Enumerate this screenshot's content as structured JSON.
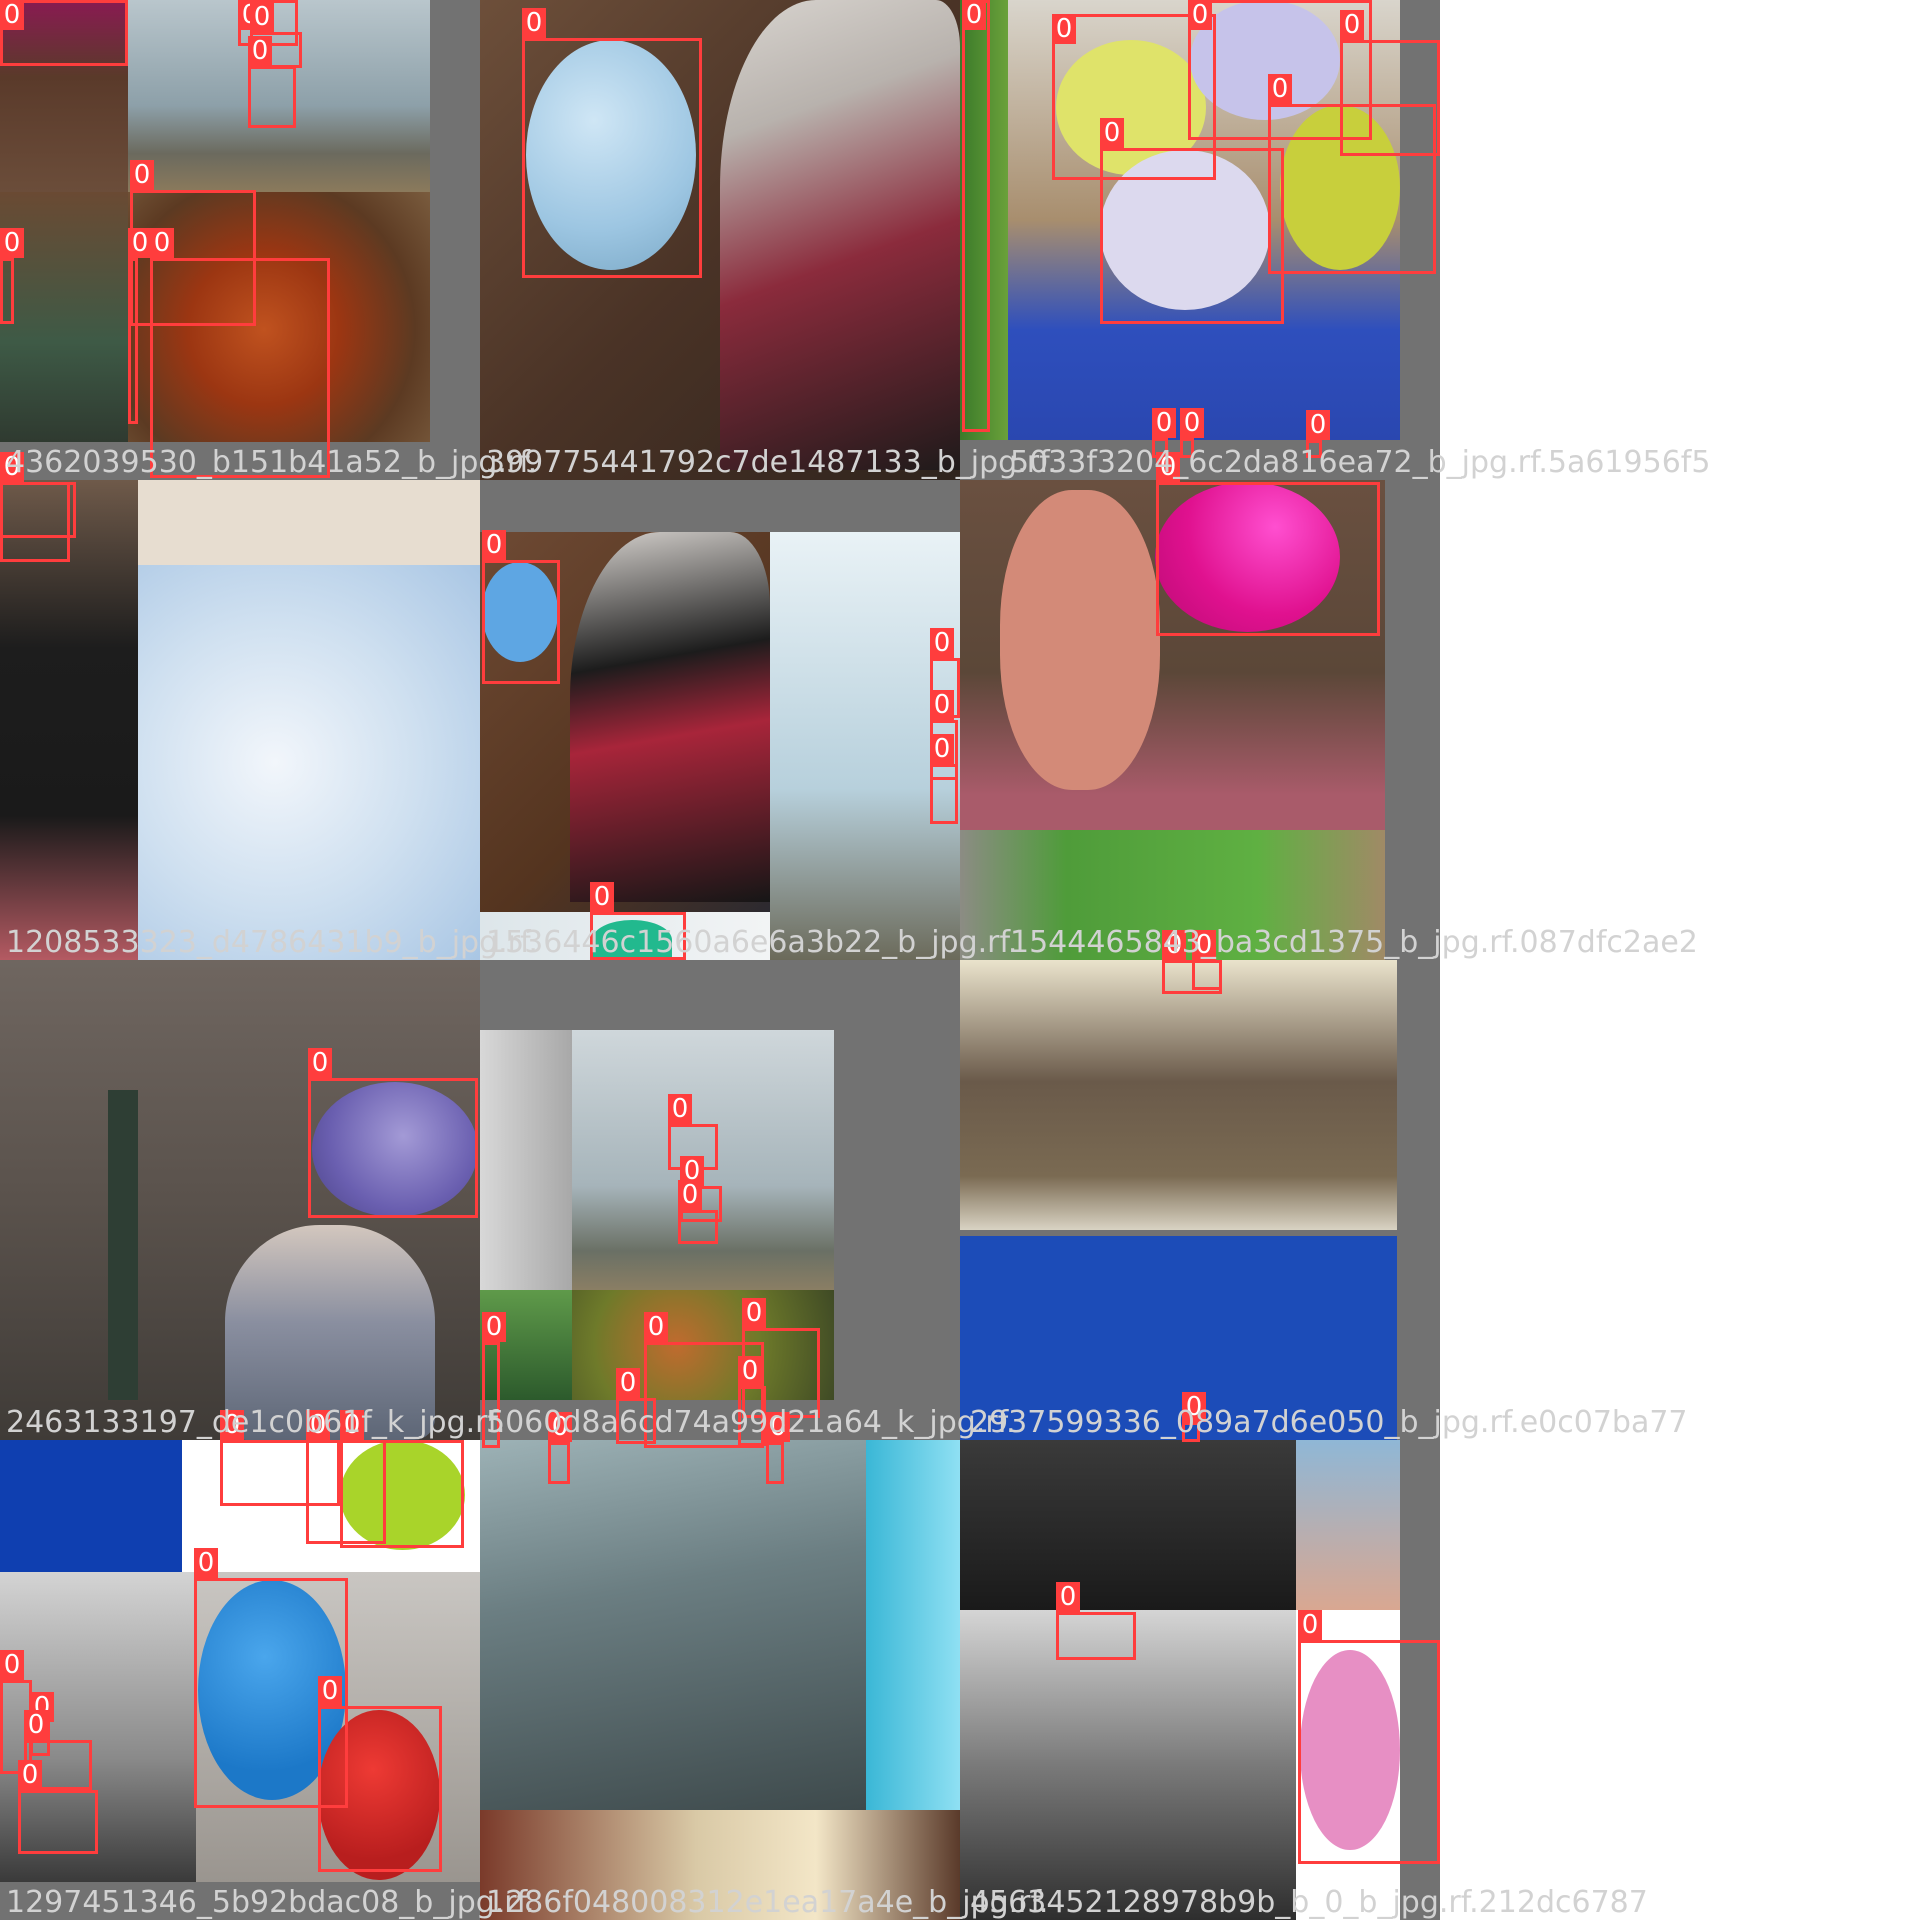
{
  "colors": {
    "box": "#ff3d3d",
    "label_text": "#ffffff",
    "filename_text": "#d2d2d2",
    "letterbox": "#727272"
  },
  "class_label": "0",
  "filenames": [
    "4362039530_b151b41a52_b_jpg.rf.",
    "399775441792c7de1487133_b_jpg.rf.",
    "5033f3204_6c2da816ea72_b_jpg.rf.5a61956f5",
    "1208533323_d4786431b9_b_jpg.rf.",
    "1536446c1560a6e6a3b22_b_jpg.rf.",
    "1544465843_ba3cd1375_b_jpg.rf.087dfc2ae2",
    "2463133197_de1c0b61f_k_jpg.rf.",
    "5060d8a6cd74a99d21a64_k_jpg.rf.",
    "2937599336_089a7d6e050_b_jpg.rf.e0c07ba77",
    "1297451346_5b92bdac08_b_jpg.rf.",
    "1286f048008312e1ea17a4e_b_jpg.rf.",
    "4563452128978b9b_b_0_b_jpg.rf.212dc6787"
  ]
}
